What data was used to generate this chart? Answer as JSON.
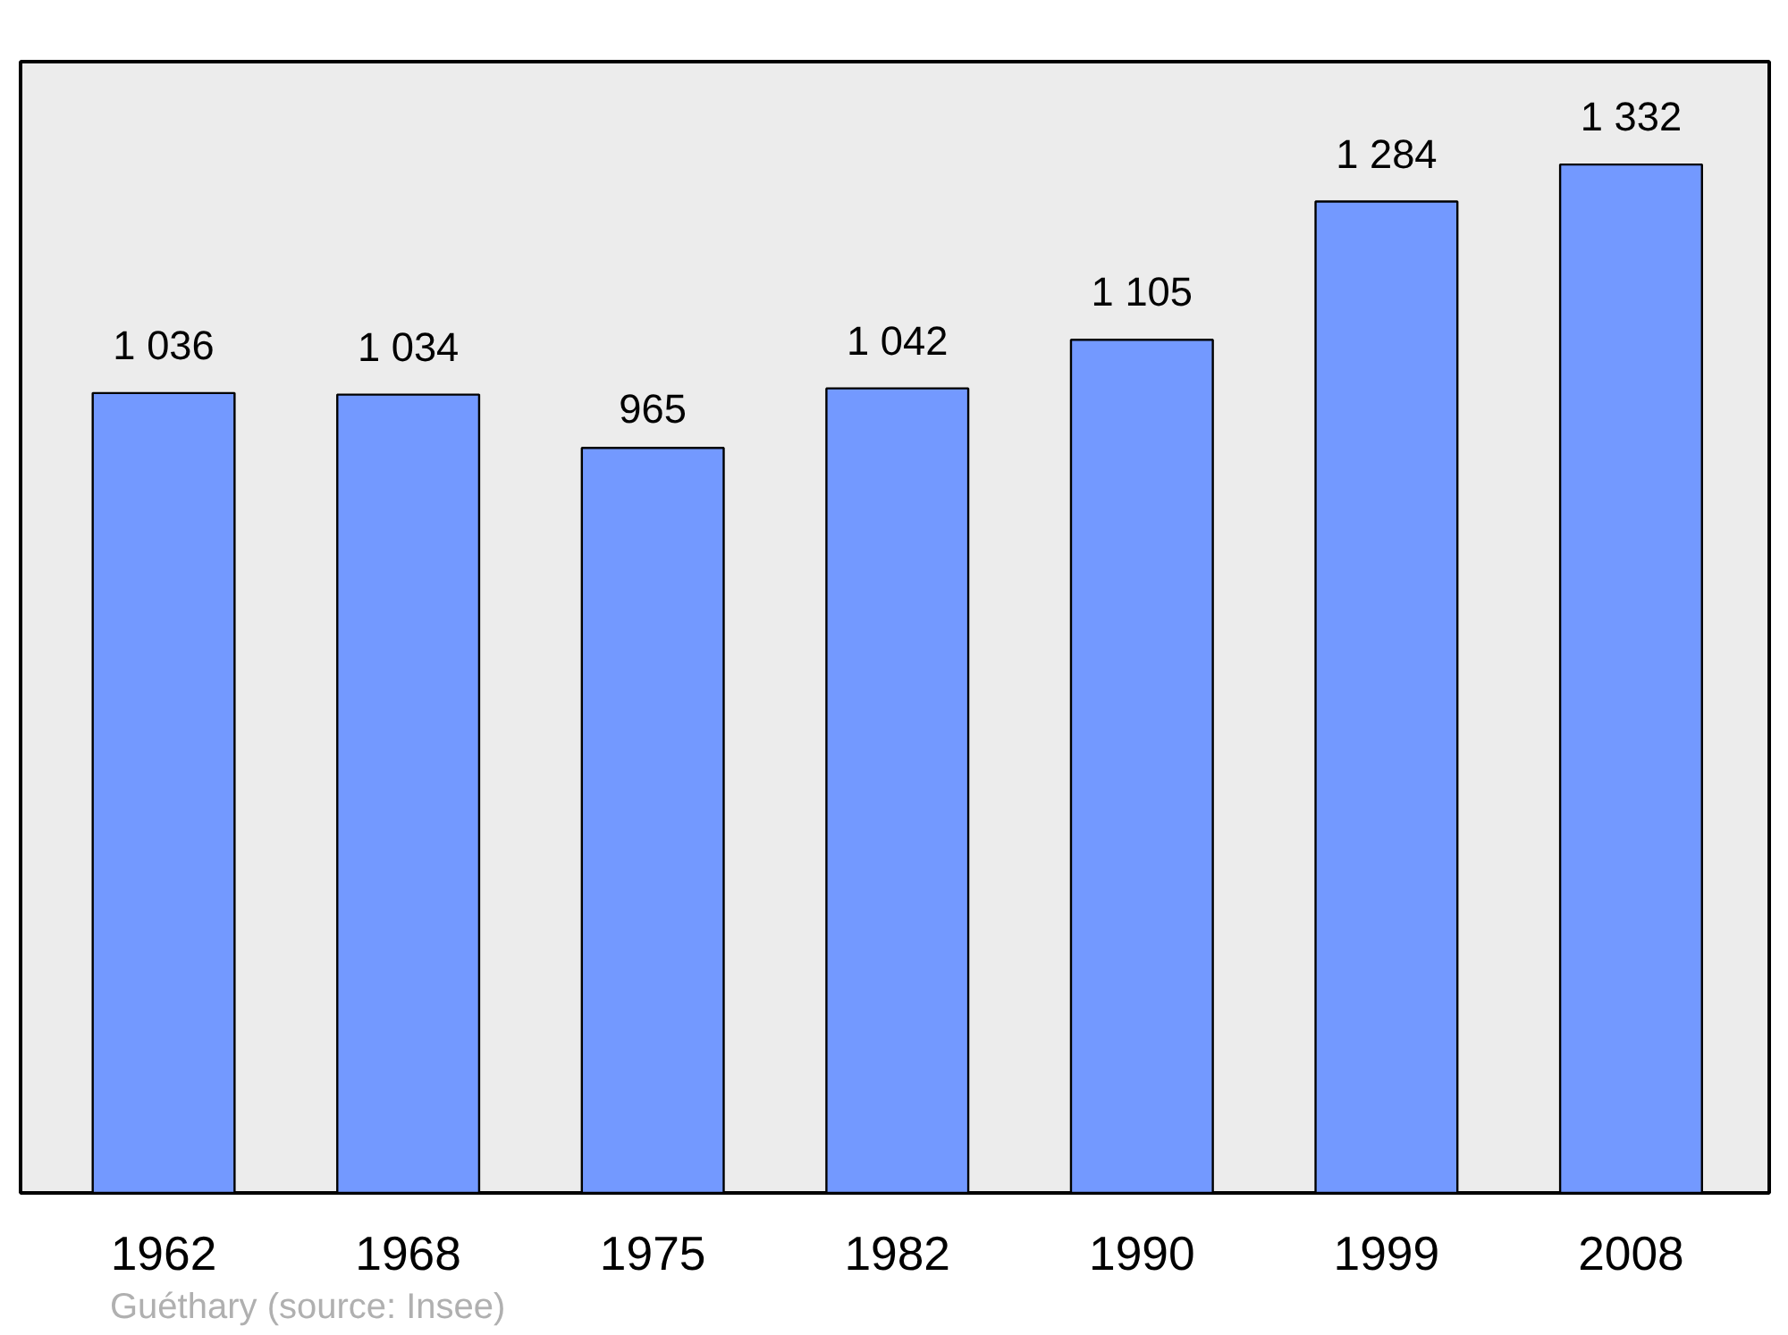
{
  "chart_data": {
    "type": "bar",
    "categories": [
      "1962",
      "1968",
      "1975",
      "1982",
      "1990",
      "1999",
      "2008"
    ],
    "values": [
      1036,
      1034,
      965,
      1042,
      1105,
      1284,
      1332
    ],
    "value_labels": [
      "1 036",
      "1 034",
      "965",
      "1 042",
      "1 105",
      "1 284",
      "1 332"
    ],
    "color": "#7399ff",
    "grid": false,
    "annotations": [
      "Guéthary    (source: Insee)"
    ]
  }
}
